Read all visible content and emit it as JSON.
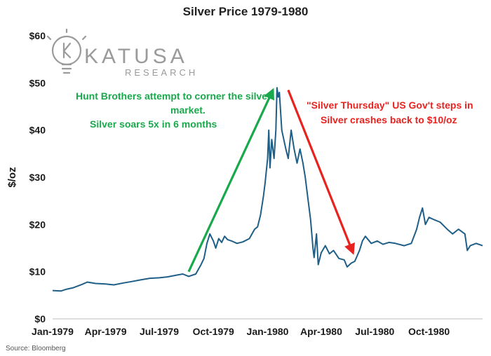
{
  "chart_data": {
    "type": "line",
    "title": "Silver Price 1979-1980",
    "ylabel": "$/oz",
    "xlabel": "",
    "ylim": [
      0,
      60
    ],
    "xlim": [
      "1979-01-01",
      "1980-12-31"
    ],
    "y_ticks": [
      {
        "value": 0,
        "label": "$0"
      },
      {
        "value": 10,
        "label": "$10"
      },
      {
        "value": 20,
        "label": "$20"
      },
      {
        "value": 30,
        "label": "$30"
      },
      {
        "value": 40,
        "label": "$40"
      },
      {
        "value": 50,
        "label": "$50"
      },
      {
        "value": 60,
        "label": "$60"
      }
    ],
    "x_ticks": [
      {
        "date": "1979-01-01",
        "label": "Jan-1979"
      },
      {
        "date": "1979-04-01",
        "label": "Apr-1979"
      },
      {
        "date": "1979-07-01",
        "label": "Jul-1979"
      },
      {
        "date": "1979-10-01",
        "label": "Oct-1979"
      },
      {
        "date": "1980-01-01",
        "label": "Jan-1980"
      },
      {
        "date": "1980-04-01",
        "label": "Apr-1980"
      },
      {
        "date": "1980-07-01",
        "label": "Jul-1980"
      },
      {
        "date": "1980-10-01",
        "label": "Oct-1980"
      }
    ],
    "grid": false,
    "series": [
      {
        "color": "#1f5f87",
        "points": [
          [
            "1979-01-01",
            6.0
          ],
          [
            "1979-01-15",
            5.9
          ],
          [
            "1979-01-25",
            6.3
          ],
          [
            "1979-02-05",
            6.6
          ],
          [
            "1979-02-20",
            7.3
          ],
          [
            "1979-03-01",
            7.8
          ],
          [
            "1979-03-15",
            7.5
          ],
          [
            "1979-04-01",
            7.4
          ],
          [
            "1979-04-15",
            7.2
          ],
          [
            "1979-05-01",
            7.6
          ],
          [
            "1979-05-15",
            7.9
          ],
          [
            "1979-06-01",
            8.3
          ],
          [
            "1979-06-15",
            8.6
          ],
          [
            "1979-07-01",
            8.7
          ],
          [
            "1979-07-15",
            8.9
          ],
          [
            "1979-08-01",
            9.3
          ],
          [
            "1979-08-10",
            9.5
          ],
          [
            "1979-08-20",
            9.0
          ],
          [
            "1979-09-01",
            9.5
          ],
          [
            "1979-09-10",
            11.5
          ],
          [
            "1979-09-15",
            12.8
          ],
          [
            "1979-09-20",
            16.0
          ],
          [
            "1979-09-25",
            18.0
          ],
          [
            "1979-10-01",
            16.5
          ],
          [
            "1979-10-05",
            15.0
          ],
          [
            "1979-10-10",
            17.0
          ],
          [
            "1979-10-15",
            16.2
          ],
          [
            "1979-10-20",
            17.5
          ],
          [
            "1979-10-25",
            16.8
          ],
          [
            "1979-11-01",
            16.5
          ],
          [
            "1979-11-10",
            16.0
          ],
          [
            "1979-11-20",
            16.3
          ],
          [
            "1979-12-01",
            17.0
          ],
          [
            "1979-12-10",
            19.0
          ],
          [
            "1979-12-15",
            19.5
          ],
          [
            "1979-12-20",
            22.0
          ],
          [
            "1979-12-25",
            26.0
          ],
          [
            "1979-12-28",
            29.0
          ],
          [
            "1980-01-01",
            34.0
          ],
          [
            "1980-01-03",
            40.0
          ],
          [
            "1980-01-05",
            32.0
          ],
          [
            "1980-01-08",
            38.0
          ],
          [
            "1980-01-12",
            34.0
          ],
          [
            "1980-01-15",
            40.0
          ],
          [
            "1980-01-17",
            49.0
          ],
          [
            "1980-01-19",
            47.0
          ],
          [
            "1980-01-21",
            48.0
          ],
          [
            "1980-01-25",
            40.0
          ],
          [
            "1980-02-01",
            36.0
          ],
          [
            "1980-02-05",
            34.0
          ],
          [
            "1980-02-10",
            40.0
          ],
          [
            "1980-02-15",
            36.0
          ],
          [
            "1980-02-20",
            33.0
          ],
          [
            "1980-02-25",
            36.0
          ],
          [
            "1980-03-01",
            33.0
          ],
          [
            "1980-03-05",
            30.0
          ],
          [
            "1980-03-10",
            25.0
          ],
          [
            "1980-03-14",
            21.0
          ],
          [
            "1980-03-18",
            15.0
          ],
          [
            "1980-03-20",
            13.0
          ],
          [
            "1980-03-24",
            18.0
          ],
          [
            "1980-03-27",
            11.5
          ],
          [
            "1980-04-01",
            14.0
          ],
          [
            "1980-04-08",
            15.5
          ],
          [
            "1980-04-15",
            13.8
          ],
          [
            "1980-04-22",
            14.5
          ],
          [
            "1980-05-01",
            12.8
          ],
          [
            "1980-05-10",
            12.5
          ],
          [
            "1980-05-15",
            11.0
          ],
          [
            "1980-05-22",
            11.8
          ],
          [
            "1980-05-28",
            12.2
          ],
          [
            "1980-06-05",
            14.5
          ],
          [
            "1980-06-10",
            16.5
          ],
          [
            "1980-06-15",
            17.5
          ],
          [
            "1980-06-25",
            16.0
          ],
          [
            "1980-07-05",
            16.5
          ],
          [
            "1980-07-15",
            15.8
          ],
          [
            "1980-07-25",
            16.2
          ],
          [
            "1980-08-05",
            16.0
          ],
          [
            "1980-08-20",
            15.5
          ],
          [
            "1980-09-01",
            16.0
          ],
          [
            "1980-09-10",
            19.0
          ],
          [
            "1980-09-15",
            21.5
          ],
          [
            "1980-09-20",
            23.5
          ],
          [
            "1980-09-25",
            20.0
          ],
          [
            "1980-10-01",
            21.5
          ],
          [
            "1980-10-10",
            21.0
          ],
          [
            "1980-10-20",
            20.5
          ],
          [
            "1980-11-01",
            19.0
          ],
          [
            "1980-11-10",
            18.0
          ],
          [
            "1980-11-20",
            19.0
          ],
          [
            "1980-12-01",
            18.0
          ],
          [
            "1980-12-05",
            14.5
          ],
          [
            "1980-12-10",
            15.5
          ],
          [
            "1980-12-20",
            16.0
          ],
          [
            "1980-12-31",
            15.5
          ]
        ]
      }
    ],
    "annotations": [
      {
        "id": "hunt",
        "lines": [
          "Hunt Brothers attempt to corner the silver",
          "market.",
          "Silver soars 5x in 6 months"
        ],
        "color": "#19a84b",
        "arrow_from": [
          "1979-08-20",
          10.0
        ],
        "arrow_to": [
          "1980-01-10",
          48.5
        ]
      },
      {
        "id": "thursday",
        "lines": [
          "\"Silver Thursday\" US Gov't steps in",
          "Silver crashes back to $10/oz"
        ],
        "color": "#e8231f",
        "arrow_from": [
          "1980-02-05",
          48.5
        ],
        "arrow_to": [
          "1980-05-25",
          14.0
        ]
      }
    ]
  },
  "logo": {
    "name": "KATUSA",
    "sub": "RESEARCH",
    "icon": "lightbulb-k-icon"
  },
  "source": "Source: Bloomberg"
}
